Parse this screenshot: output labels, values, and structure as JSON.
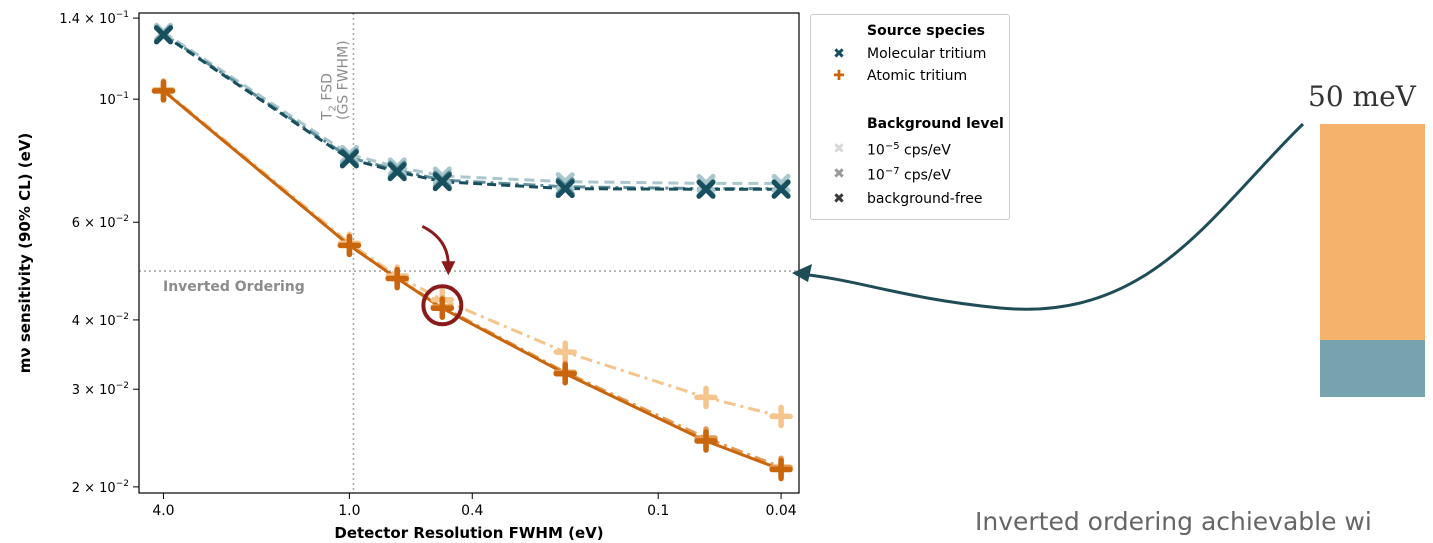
{
  "colors": {
    "molecular": "#174f5e",
    "molecular_mid": "#5f8f9b",
    "molecular_light": "#a9c7cc",
    "atomic": "#c9650d",
    "atomic_mid": "#e49a52",
    "atomic_light": "#f6c48d",
    "arrow": "#1e4d58",
    "highlight": "#8b1a1a",
    "bar_orange": "#f4b26c",
    "bar_teal": "#76a3ad"
  },
  "chart_data": {
    "type": "line",
    "title": "",
    "xlabel": "Detector Resolution FWHM (eV)",
    "ylabel": "mν sensitivity (90% CL) (eV)",
    "x_scale": "log",
    "x_reversed": true,
    "y_scale": "log",
    "xlim": [
      4.8,
      0.035
    ],
    "ylim": [
      0.0195,
      0.143
    ],
    "x_ticks": [
      {
        "value": 4.0,
        "label": "4.0"
      },
      {
        "value": 1.0,
        "label": "1.0"
      },
      {
        "value": 0.4,
        "label": "0.4"
      },
      {
        "value": 0.1,
        "label": "0.1"
      },
      {
        "value": 0.04,
        "label": "0.04"
      }
    ],
    "y_ticks": [
      {
        "value": 0.14,
        "mant": "1.4 × 10",
        "exp": "−1"
      },
      {
        "value": 0.1,
        "mant": "10",
        "exp": "−1"
      },
      {
        "value": 0.06,
        "mant": "6 × 10",
        "exp": "−2"
      },
      {
        "value": 0.04,
        "mant": "4 × 10",
        "exp": "−2"
      },
      {
        "value": 0.03,
        "mant": "3 × 10",
        "exp": "−2"
      },
      {
        "value": 0.02,
        "mant": "2 × 10",
        "exp": "−2"
      }
    ],
    "x": [
      4.0,
      1.0,
      0.7,
      0.5,
      0.2,
      0.07,
      0.04
    ],
    "series": [
      {
        "species": "molecular",
        "background": "1e-5",
        "values": [
          0.132,
          0.0795,
          0.0755,
          0.0727,
          0.071,
          0.0705,
          0.0705
        ]
      },
      {
        "species": "molecular",
        "background": "1e-7",
        "values": [
          0.131,
          0.0785,
          0.0745,
          0.0715,
          0.0695,
          0.069,
          0.069
        ]
      },
      {
        "species": "molecular",
        "background": "free",
        "values": [
          0.1305,
          0.078,
          0.074,
          0.071,
          0.069,
          0.0688,
          0.0688
        ]
      },
      {
        "species": "atomic",
        "background": "1e-5",
        "values": [
          0.104,
          0.055,
          0.048,
          0.0435,
          0.035,
          0.029,
          0.0268
        ]
      },
      {
        "species": "atomic",
        "background": "1e-7",
        "values": [
          0.1035,
          0.0545,
          0.0475,
          0.0422,
          0.0322,
          0.0245,
          0.0217
        ]
      },
      {
        "species": "atomic",
        "background": "free",
        "values": [
          0.1035,
          0.0545,
          0.0475,
          0.042,
          0.032,
          0.0242,
          0.0215
        ]
      }
    ],
    "reference_lines": [
      {
        "axis": "y",
        "value": 0.049,
        "label": "Inverted Ordering"
      },
      {
        "axis": "x",
        "value": 0.97,
        "label_line1": "T",
        "label_sub": "2",
        "label_rest": " FSD",
        "label_line2": "(GS FWHM)"
      }
    ],
    "highlight_point": {
      "x": 0.5,
      "y": 0.0425
    },
    "legend": {
      "position": "outside-right",
      "species_title": "Source species",
      "species": [
        {
          "label": "Molecular tritium",
          "marker": "✖"
        },
        {
          "label": "Atomic tritium",
          "marker": "✚"
        }
      ],
      "background_title": "Background level",
      "backgrounds": [
        {
          "mant": "10",
          "exp": "−5",
          "unit": " cps/eV",
          "color": "#d8d8d8"
        },
        {
          "mant": "10",
          "exp": "−7",
          "unit": " cps/eV",
          "color": "#9a9a9a"
        },
        {
          "label": "background-free",
          "color": "#3a3a3a"
        }
      ]
    }
  },
  "side_panel": {
    "bar_label": "50 meV",
    "caption": "Inverted ordering achievable wi"
  }
}
